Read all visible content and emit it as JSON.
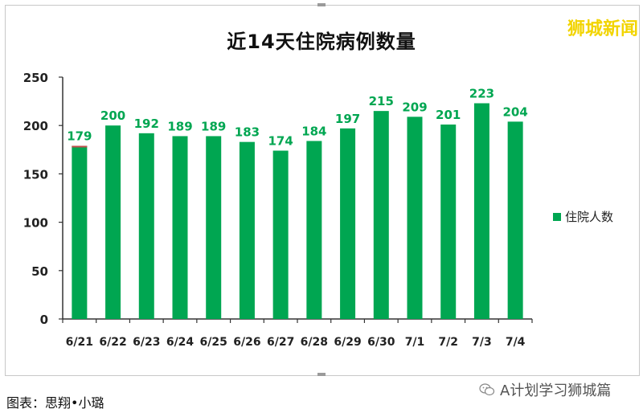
{
  "brand": "狮城新闻",
  "credit": "图表：思翔•小璐",
  "source": "A计划学习狮城篇",
  "icons": {
    "source_icon": "wechat-icon"
  },
  "colors": {
    "bar": "#00a651",
    "label": "#00a651",
    "first_bar_top": "#c0504d"
  },
  "chart_data": {
    "type": "bar",
    "title": "近14天住院病例数量",
    "categories": [
      "6/21",
      "6/22",
      "6/23",
      "6/24",
      "6/25",
      "6/26",
      "6/27",
      "6/28",
      "6/29",
      "6/30",
      "7/1",
      "7/2",
      "7/3",
      "7/4"
    ],
    "series": [
      {
        "name": "住院人数",
        "values": [
          179,
          200,
          192,
          189,
          189,
          183,
          174,
          184,
          197,
          215,
          209,
          201,
          223,
          204
        ]
      }
    ],
    "ylim": [
      0,
      250
    ],
    "yticks": [
      0,
      50,
      100,
      150,
      200,
      250
    ],
    "grid": false,
    "legend": "right"
  }
}
